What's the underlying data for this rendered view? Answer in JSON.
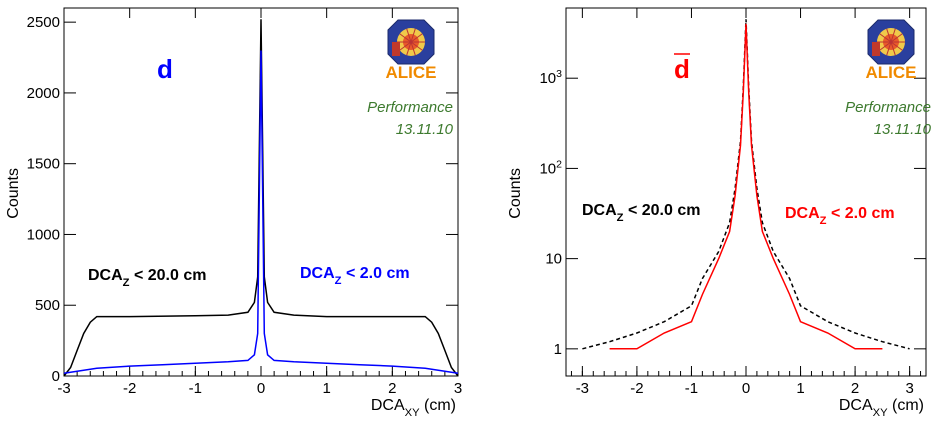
{
  "chart_data": [
    {
      "type": "line",
      "particle_label": "d",
      "xlabel": "DCA",
      "xlabel_sub": "XY",
      "xlabel_unit": " (cm)",
      "ylabel": "Counts",
      "xlim": [
        -3,
        3
      ],
      "ylim": [
        0,
        2600
      ],
      "yscale": "linear",
      "x_ticks": [
        "-3",
        "-2",
        "-1",
        "0",
        "1",
        "2",
        "3"
      ],
      "y_ticks": [
        "0",
        "500",
        "1000",
        "1500",
        "2000",
        "2500"
      ],
      "logo_text": "ALICE",
      "performance_text": "Performance",
      "date_text": "13.11.10",
      "series": [
        {
          "label_main": "DCA",
          "label_sub": "Z",
          "label_rest": " < 20.0 cm",
          "color": "#000000",
          "x": [
            -3.0,
            -2.9,
            -2.8,
            -2.7,
            -2.6,
            -2.5,
            -2.0,
            -1.0,
            -0.5,
            -0.2,
            -0.1,
            -0.05,
            0.0,
            0.05,
            0.1,
            0.2,
            0.5,
            1.0,
            2.0,
            2.5,
            2.6,
            2.7,
            2.8,
            2.9,
            3.0
          ],
          "y": [
            0,
            60,
            180,
            300,
            380,
            420,
            420,
            425,
            430,
            450,
            520,
            700,
            2520,
            700,
            520,
            450,
            430,
            420,
            420,
            420,
            380,
            300,
            180,
            60,
            0
          ]
        },
        {
          "label_main": "DCA",
          "label_sub": "Z",
          "label_rest": " < 2.0 cm",
          "color": "#0000ff",
          "x": [
            -3.0,
            -2.5,
            -2.0,
            -1.5,
            -1.0,
            -0.5,
            -0.2,
            -0.1,
            -0.05,
            0.0,
            0.05,
            0.1,
            0.2,
            0.5,
            1.0,
            1.5,
            2.0,
            2.5,
            3.0
          ],
          "y": [
            20,
            55,
            70,
            80,
            90,
            100,
            110,
            150,
            300,
            2300,
            300,
            150,
            110,
            100,
            90,
            80,
            70,
            55,
            20
          ]
        }
      ]
    },
    {
      "type": "line",
      "particle_label": "d",
      "particle_bar": true,
      "xlabel": "DCA",
      "xlabel_sub": "XY",
      "xlabel_unit": " (cm)",
      "ylabel": "Counts",
      "xlim": [
        -3.3,
        3.3
      ],
      "ylim": [
        0.5,
        6000
      ],
      "yscale": "log",
      "x_ticks": [
        "-3",
        "-2",
        "-1",
        "0",
        "1",
        "2",
        "3"
      ],
      "y_ticks": [
        {
          "base": "1",
          "exp": ""
        },
        {
          "base": "10",
          "exp": ""
        },
        {
          "base": "10",
          "exp": "2"
        },
        {
          "base": "10",
          "exp": "3"
        }
      ],
      "logo_text": "ALICE",
      "performance_text": "Performance",
      "date_text": "13.11.10",
      "series": [
        {
          "label_main": "DCA",
          "label_sub": "Z",
          "label_rest": " < 20.0 cm",
          "color": "#000000",
          "style": "dashed",
          "x": [
            -3.0,
            -2.5,
            -2.0,
            -1.5,
            -1.0,
            -0.8,
            -0.5,
            -0.3,
            -0.2,
            -0.1,
            -0.05,
            0.0,
            0.05,
            0.1,
            0.2,
            0.3,
            0.5,
            0.8,
            1.0,
            1.5,
            2.0,
            2.5,
            3.0
          ],
          "y": [
            1,
            1.2,
            1.5,
            2,
            3,
            6,
            12,
            25,
            60,
            200,
            800,
            4500,
            800,
            200,
            60,
            25,
            12,
            6,
            3,
            2,
            1.5,
            1.2,
            1
          ]
        },
        {
          "label_main": "DCA",
          "label_sub": "Z",
          "label_rest": " < 2.0 cm",
          "color": "#ff0000",
          "style": "solid",
          "x": [
            -2.5,
            -2.0,
            -1.5,
            -1.0,
            -0.8,
            -0.5,
            -0.3,
            -0.2,
            -0.1,
            -0.05,
            0.0,
            0.05,
            0.1,
            0.2,
            0.3,
            0.5,
            0.8,
            1.0,
            1.5,
            2.0,
            2.5
          ],
          "y": [
            1,
            1,
            1.5,
            2,
            4,
            10,
            20,
            50,
            180,
            700,
            4000,
            700,
            180,
            50,
            20,
            10,
            4,
            2,
            1.5,
            1,
            1
          ]
        }
      ]
    }
  ]
}
